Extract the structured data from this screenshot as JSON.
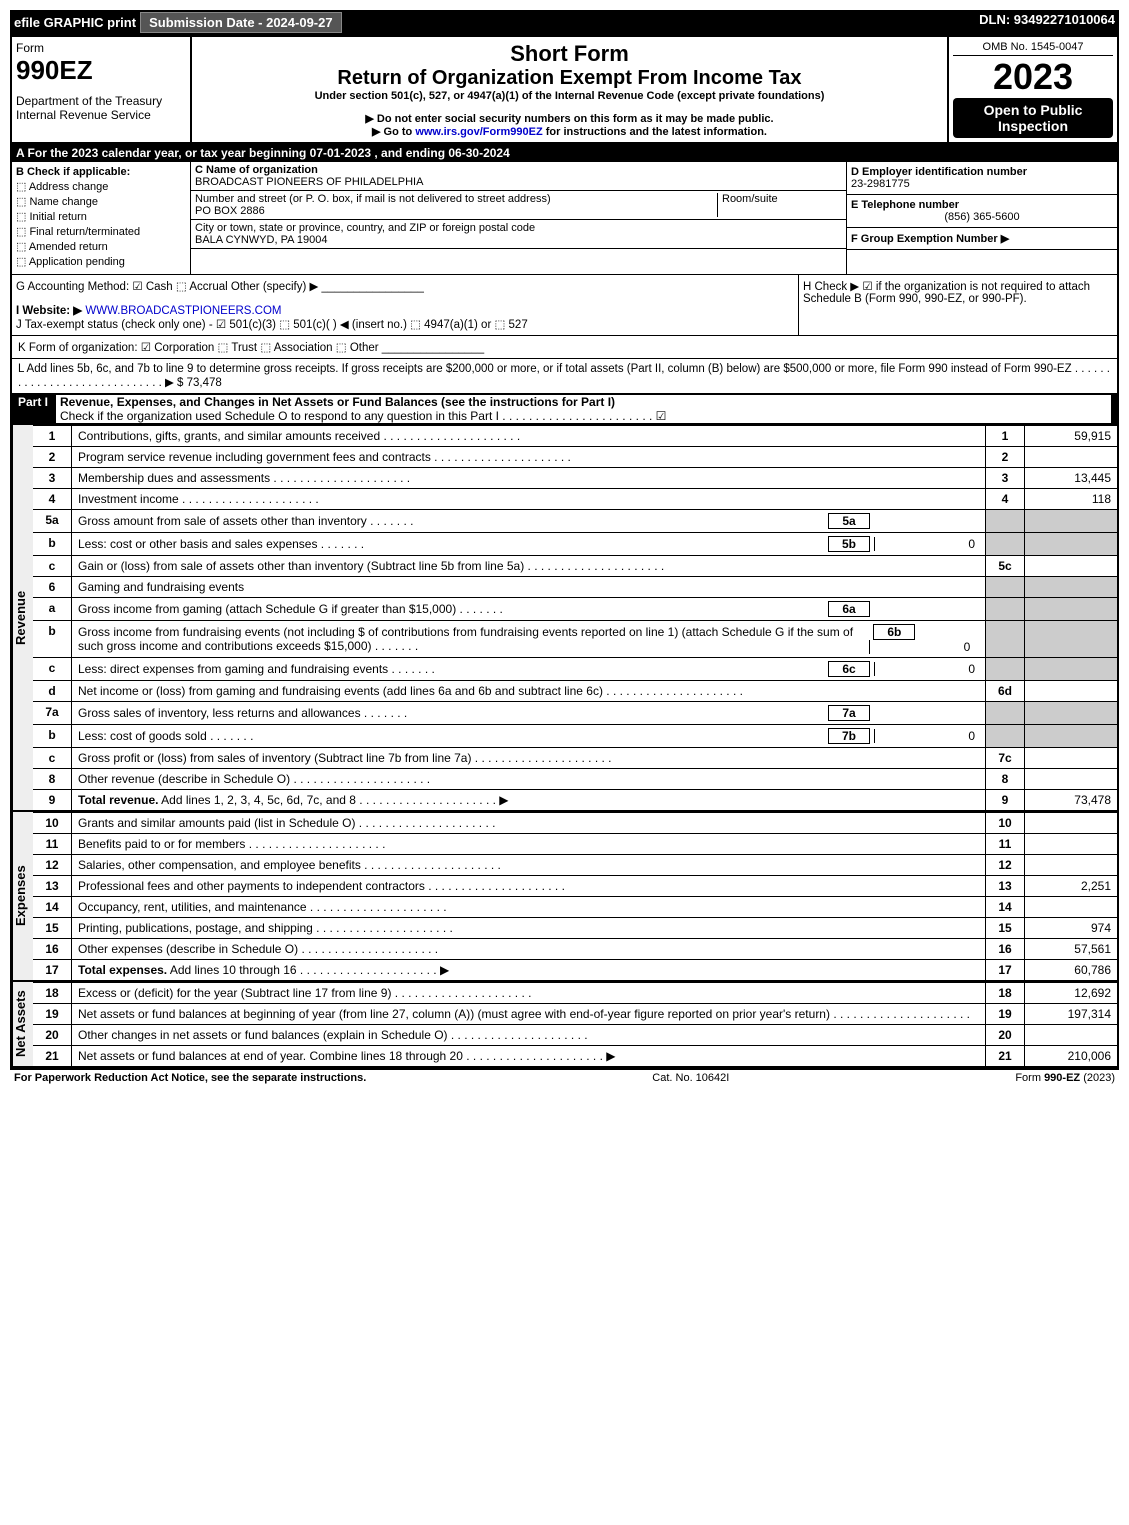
{
  "top": {
    "efile": "efile GRAPHIC print",
    "submission": "Submission Date - 2024-09-27",
    "dln": "DLN: 93492271010064"
  },
  "header": {
    "form_label": "Form",
    "form_number": "990EZ",
    "dept": "Department of the Treasury",
    "irs": "Internal Revenue Service",
    "short_form": "Short Form",
    "title": "Return of Organization Exempt From Income Tax",
    "under": "Under section 501(c), 527, or 4947(a)(1) of the Internal Revenue Code (except private foundations)",
    "ssn_warn": "▶ Do not enter social security numbers on this form as it may be made public.",
    "goto": "▶ Go to www.irs.gov/Form990EZ for instructions and the latest information.",
    "omb": "OMB No. 1545-0047",
    "year": "2023",
    "open": "Open to Public Inspection"
  },
  "boxA": "A  For the 2023 calendar year, or tax year beginning 07-01-2023 , and ending 06-30-2024",
  "boxB": {
    "title": "B  Check if applicable:",
    "items": [
      "Address change",
      "Name change",
      "Initial return",
      "Final return/terminated",
      "Amended return",
      "Application pending"
    ]
  },
  "boxC": {
    "label": "C Name of organization",
    "name": "BROADCAST PIONEERS OF PHILADELPHIA",
    "street_label": "Number and street (or P. O. box, if mail is not delivered to street address)",
    "street": "PO BOX 2886",
    "room_label": "Room/suite",
    "city_label": "City or town, state or province, country, and ZIP or foreign postal code",
    "city": "BALA CYNWYD, PA  19004"
  },
  "boxD": {
    "label": "D Employer identification number",
    "value": "23-2981775"
  },
  "boxE": {
    "label": "E Telephone number",
    "value": "(856) 365-5600"
  },
  "boxF": {
    "label": "F Group Exemption Number  ▶"
  },
  "boxG": "G Accounting Method:   ☑ Cash  ⬚ Accrual   Other (specify) ▶ ________________",
  "boxH": "H  Check ▶ ☑ if the organization is not required to attach Schedule B (Form 990, 990-EZ, or 990-PF).",
  "boxI": {
    "label": "I Website: ▶",
    "value": "WWW.BROADCASTPIONEERS.COM"
  },
  "boxJ": "J Tax-exempt status (check only one) - ☑ 501(c)(3) ⬚ 501(c)(  ) ◀ (insert no.) ⬚ 4947(a)(1) or ⬚ 527",
  "boxK": "K Form of organization:   ☑ Corporation   ⬚ Trust   ⬚ Association   ⬚ Other  ________________",
  "boxL": {
    "text": "L Add lines 5b, 6c, and 7b to line 9 to determine gross receipts. If gross receipts are $200,000 or more, or if total assets (Part II, column (B) below) are $500,000 or more, file Form 990 instead of Form 990-EZ",
    "amount": "▶ $ 73,478"
  },
  "part1": {
    "label": "Part I",
    "title": "Revenue, Expenses, and Changes in Net Assets or Fund Balances (see the instructions for Part I)",
    "check": "Check if the organization used Schedule O to respond to any question in this Part I",
    "check_state": "☑"
  },
  "sections": {
    "revenue_label": "Revenue",
    "expenses_label": "Expenses",
    "netassets_label": "Net Assets"
  },
  "lines": {
    "l1": {
      "n": "1",
      "d": "Contributions, gifts, grants, and similar amounts received",
      "i": "1",
      "a": "59,915"
    },
    "l2": {
      "n": "2",
      "d": "Program service revenue including government fees and contracts",
      "i": "2",
      "a": ""
    },
    "l3": {
      "n": "3",
      "d": "Membership dues and assessments",
      "i": "3",
      "a": "13,445"
    },
    "l4": {
      "n": "4",
      "d": "Investment income",
      "i": "4",
      "a": "118"
    },
    "l5a": {
      "n": "5a",
      "d": "Gross amount from sale of assets other than inventory",
      "sub": "5a",
      "subv": ""
    },
    "l5b": {
      "n": "b",
      "d": "Less: cost or other basis and sales expenses",
      "sub": "5b",
      "subv": "0"
    },
    "l5c": {
      "n": "c",
      "d": "Gain or (loss) from sale of assets other than inventory (Subtract line 5b from line 5a)",
      "i": "5c",
      "a": ""
    },
    "l6": {
      "n": "6",
      "d": "Gaming and fundraising events"
    },
    "l6a": {
      "n": "a",
      "d": "Gross income from gaming (attach Schedule G if greater than $15,000)",
      "sub": "6a",
      "subv": ""
    },
    "l6b": {
      "n": "b",
      "d": "Gross income from fundraising events (not including $                    of contributions from fundraising events reported on line 1) (attach Schedule G if the sum of such gross income and contributions exceeds $15,000)",
      "sub": "6b",
      "subv": "0"
    },
    "l6c": {
      "n": "c",
      "d": "Less: direct expenses from gaming and fundraising events",
      "sub": "6c",
      "subv": "0"
    },
    "l6d": {
      "n": "d",
      "d": "Net income or (loss) from gaming and fundraising events (add lines 6a and 6b and subtract line 6c)",
      "i": "6d",
      "a": ""
    },
    "l7a": {
      "n": "7a",
      "d": "Gross sales of inventory, less returns and allowances",
      "sub": "7a",
      "subv": ""
    },
    "l7b": {
      "n": "b",
      "d": "Less: cost of goods sold",
      "sub": "7b",
      "subv": "0"
    },
    "l7c": {
      "n": "c",
      "d": "Gross profit or (loss) from sales of inventory (Subtract line 7b from line 7a)",
      "i": "7c",
      "a": ""
    },
    "l8": {
      "n": "8",
      "d": "Other revenue (describe in Schedule O)",
      "i": "8",
      "a": ""
    },
    "l9": {
      "n": "9",
      "d": "Total revenue. Add lines 1, 2, 3, 4, 5c, 6d, 7c, and 8",
      "i": "9",
      "a": "73,478",
      "arrow": "▶",
      "bold": true
    },
    "l10": {
      "n": "10",
      "d": "Grants and similar amounts paid (list in Schedule O)",
      "i": "10",
      "a": ""
    },
    "l11": {
      "n": "11",
      "d": "Benefits paid to or for members",
      "i": "11",
      "a": ""
    },
    "l12": {
      "n": "12",
      "d": "Salaries, other compensation, and employee benefits",
      "i": "12",
      "a": ""
    },
    "l13": {
      "n": "13",
      "d": "Professional fees and other payments to independent contractors",
      "i": "13",
      "a": "2,251"
    },
    "l14": {
      "n": "14",
      "d": "Occupancy, rent, utilities, and maintenance",
      "i": "14",
      "a": ""
    },
    "l15": {
      "n": "15",
      "d": "Printing, publications, postage, and shipping",
      "i": "15",
      "a": "974"
    },
    "l16": {
      "n": "16",
      "d": "Other expenses (describe in Schedule O)",
      "i": "16",
      "a": "57,561"
    },
    "l17": {
      "n": "17",
      "d": "Total expenses. Add lines 10 through 16",
      "i": "17",
      "a": "60,786",
      "arrow": "▶",
      "bold": true
    },
    "l18": {
      "n": "18",
      "d": "Excess or (deficit) for the year (Subtract line 17 from line 9)",
      "i": "18",
      "a": "12,692"
    },
    "l19": {
      "n": "19",
      "d": "Net assets or fund balances at beginning of year (from line 27, column (A)) (must agree with end-of-year figure reported on prior year's return)",
      "i": "19",
      "a": "197,314"
    },
    "l20": {
      "n": "20",
      "d": "Other changes in net assets or fund balances (explain in Schedule O)",
      "i": "20",
      "a": ""
    },
    "l21": {
      "n": "21",
      "d": "Net assets or fund balances at end of year. Combine lines 18 through 20",
      "i": "21",
      "a": "210,006",
      "arrow": "▶"
    }
  },
  "footer": {
    "left": "For Paperwork Reduction Act Notice, see the separate instructions.",
    "center": "Cat. No. 10642I",
    "right": "Form 990-EZ (2023)"
  }
}
